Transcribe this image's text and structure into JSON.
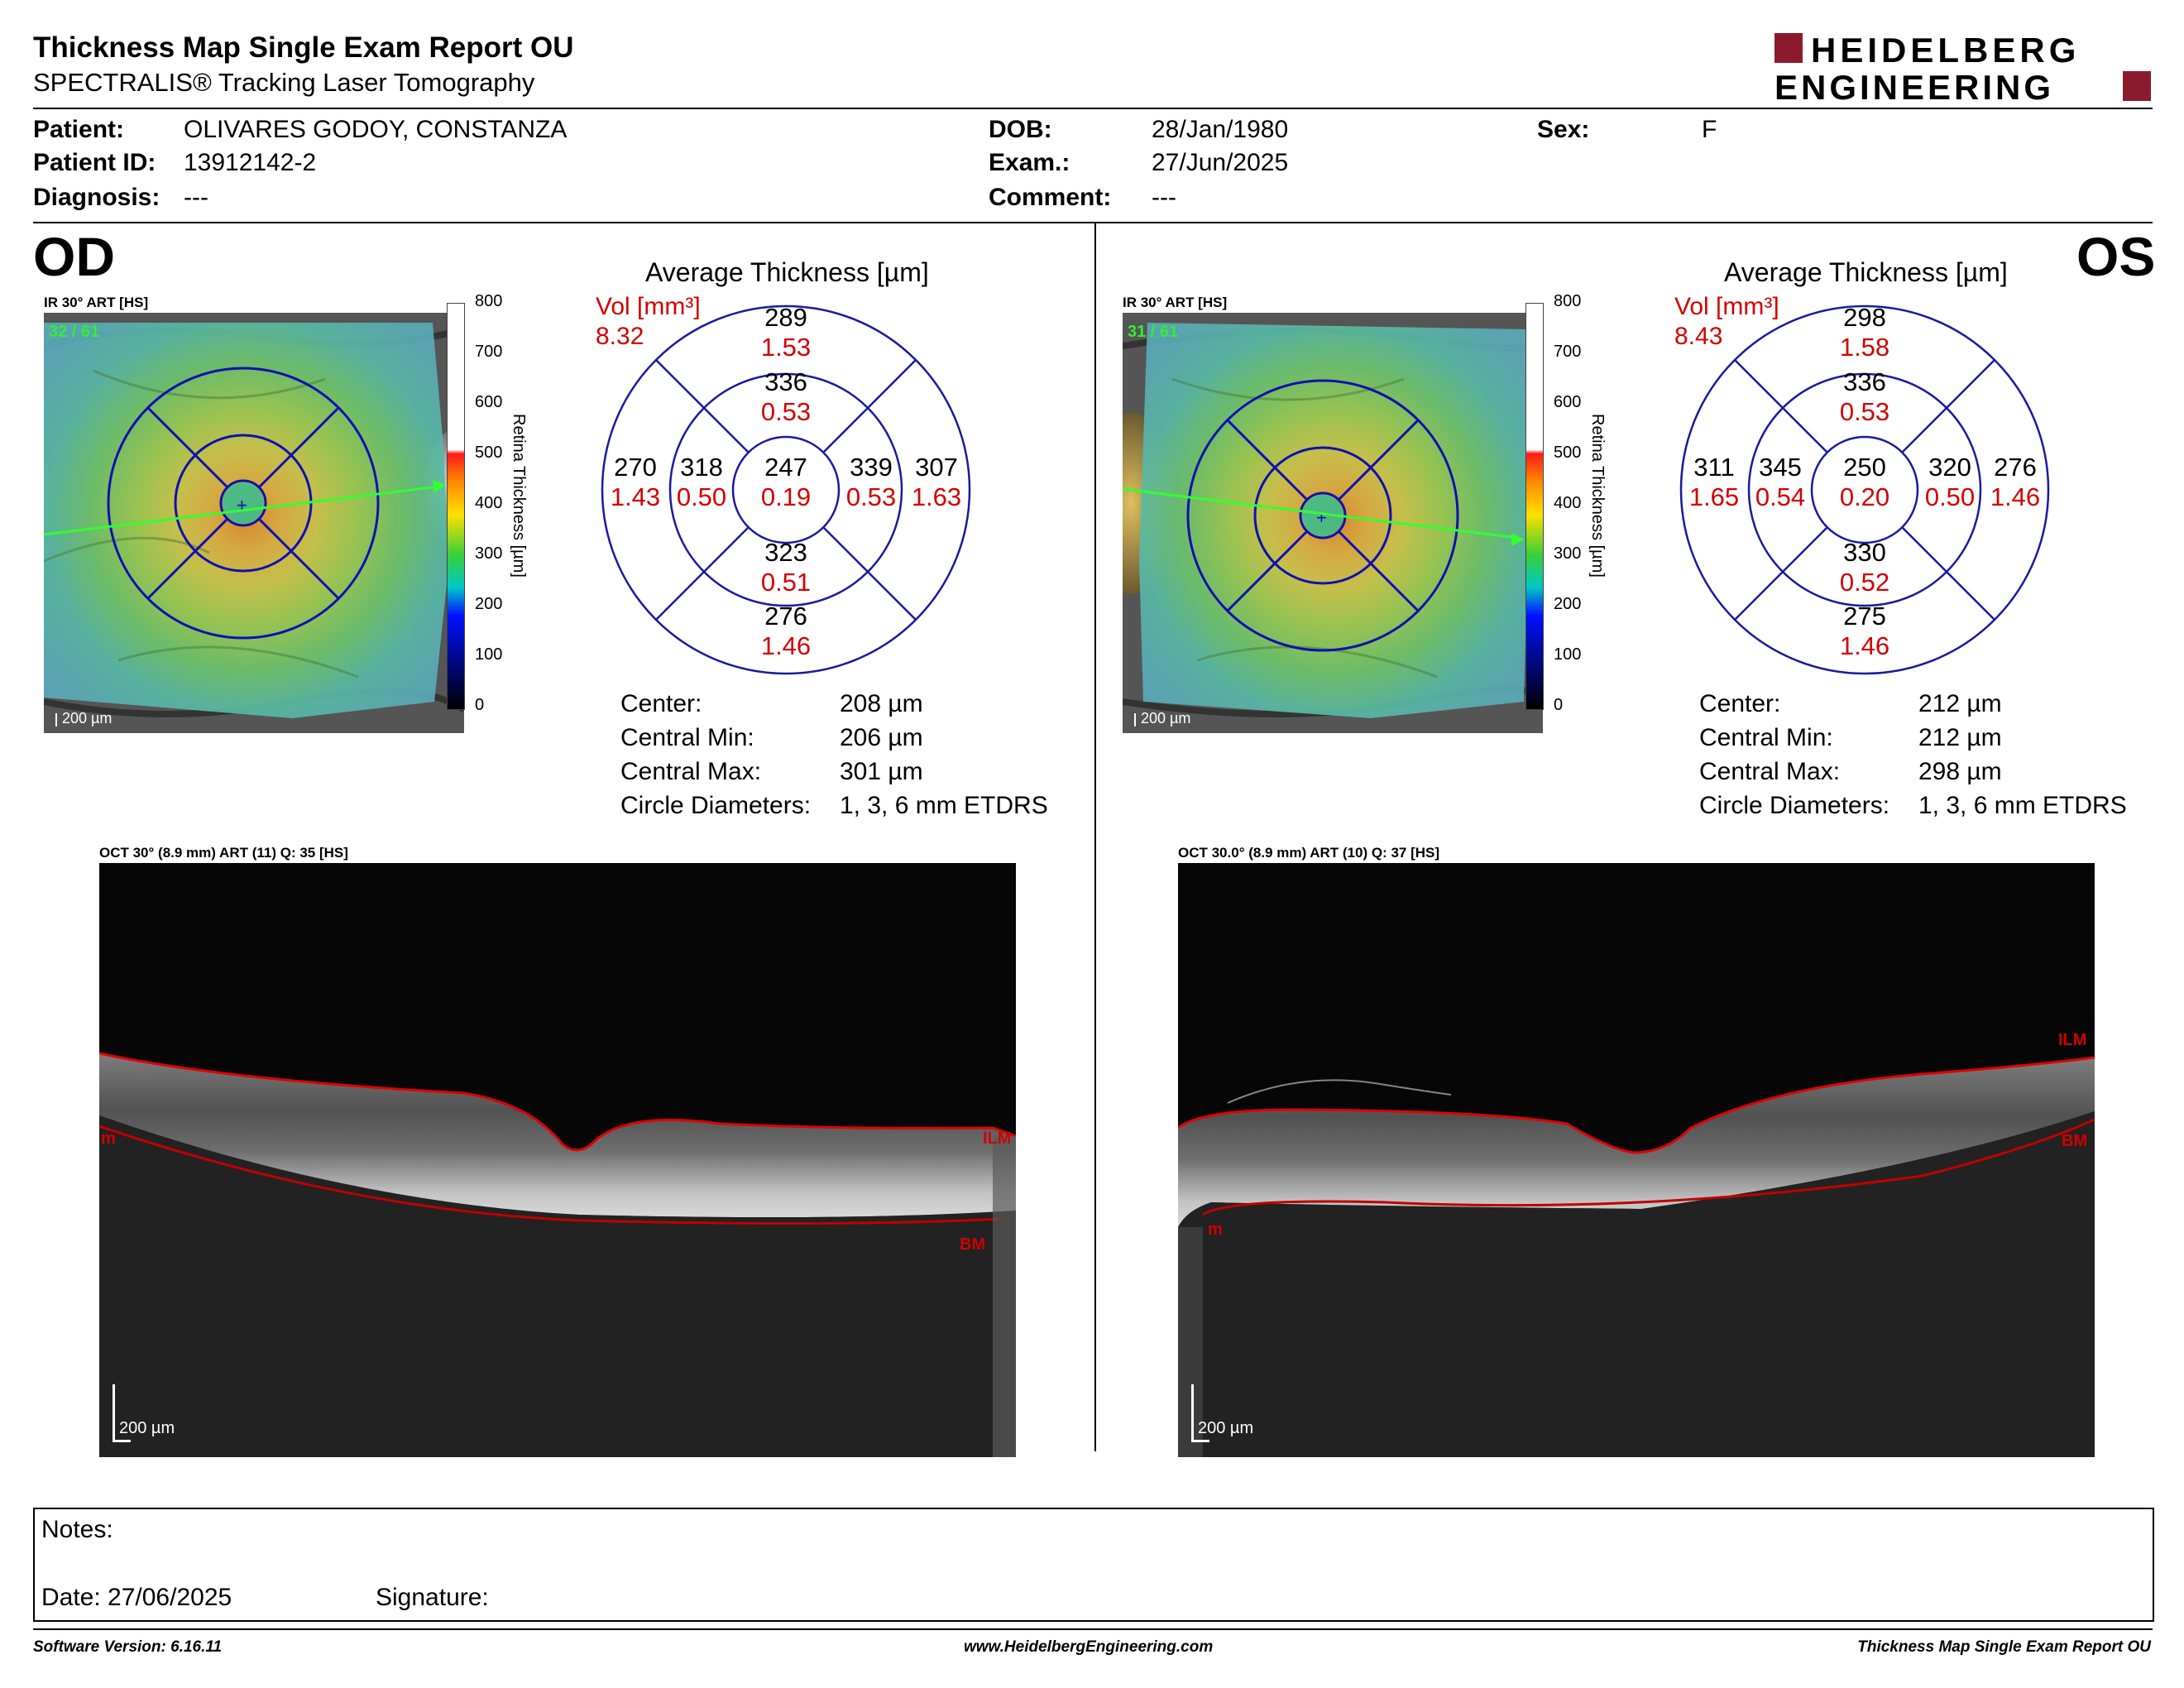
{
  "header": {
    "title": "Thickness Map Single Exam Report OU",
    "subtitle": "SPECTRALIS® Tracking Laser Tomography",
    "logo_line1": "HEIDELBERG",
    "logo_line2": "ENGINEERING",
    "logo_color": "#8b1a2e"
  },
  "patient": {
    "patient_label": "Patient:",
    "patient_value": "OLIVARES GODOY, CONSTANZA",
    "id_label": "Patient ID:",
    "id_value": "13912142-2",
    "diagnosis_label": "Diagnosis:",
    "diagnosis_value": "---",
    "dob_label": "DOB:",
    "dob_value": "28/Jan/1980",
    "exam_label": "Exam.:",
    "exam_value": "27/Jun/2025",
    "comment_label": "Comment:",
    "comment_value": "---",
    "sex_label": "Sex:",
    "sex_value": "F"
  },
  "colorbar": {
    "ticks": [
      "800",
      "700",
      "600",
      "500",
      "400",
      "300",
      "200",
      "100",
      "0"
    ],
    "label": "Retina  Thickness [µm]"
  },
  "od": {
    "eye": "OD",
    "ir_caption": "IR 30° ART [HS]",
    "art_count": "32 / 61",
    "scale": "200 µm",
    "avg_title": "Average Thickness [µm]",
    "vol_label": "Vol [mm³]",
    "vol_total": "8.32",
    "sectors": {
      "outer_sup": [
        "289",
        "1.53"
      ],
      "inner_sup": [
        "336",
        "0.53"
      ],
      "outer_temp": [
        "270",
        "1.43"
      ],
      "inner_temp": [
        "318",
        "0.50"
      ],
      "center": [
        "247",
        "0.19"
      ],
      "inner_nas": [
        "339",
        "0.53"
      ],
      "outer_nas": [
        "307",
        "1.63"
      ],
      "inner_inf": [
        "323",
        "0.51"
      ],
      "outer_inf": [
        "276",
        "1.46"
      ]
    },
    "stats": {
      "center_l": "Center:",
      "center_v": "208 µm",
      "min_l": "Central Min:",
      "min_v": "206 µm",
      "max_l": "Central Max:",
      "max_v": "301 µm",
      "diam_l": "Circle Diameters:",
      "diam_v": "1, 3, 6 mm ETDRS"
    },
    "oct_caption": "OCT 30° (8.9 mm) ART (11) Q: 35 [HS]",
    "oct_scale": "200 µm",
    "ilm": "ILM",
    "bm": "BM",
    "m": "m"
  },
  "os": {
    "eye": "OS",
    "ir_caption": "IR 30° ART [HS]",
    "art_count": "31 / 61",
    "scale": "200 µm",
    "avg_title": "Average Thickness [µm]",
    "vol_label": "Vol [mm³]",
    "vol_total": "8.43",
    "sectors": {
      "outer_sup": [
        "298",
        "1.58"
      ],
      "inner_sup": [
        "336",
        "0.53"
      ],
      "outer_temp": [
        "311",
        "1.65"
      ],
      "inner_temp": [
        "345",
        "0.54"
      ],
      "center": [
        "250",
        "0.20"
      ],
      "inner_nas": [
        "320",
        "0.50"
      ],
      "outer_nas": [
        "276",
        "1.46"
      ],
      "inner_inf": [
        "330",
        "0.52"
      ],
      "outer_inf": [
        "275",
        "1.46"
      ]
    },
    "stats": {
      "center_l": "Center:",
      "center_v": "212 µm",
      "min_l": "Central Min:",
      "min_v": "212 µm",
      "max_l": "Central Max:",
      "max_v": "298 µm",
      "diam_l": "Circle Diameters:",
      "diam_v": "1, 3, 6 mm ETDRS"
    },
    "oct_caption": "OCT 30.0° (8.9 mm) ART (10) Q: 37 [HS]",
    "oct_scale": "200 µm",
    "ilm": "ILM",
    "bm": "BM",
    "m": "m"
  },
  "notes": {
    "notes_label": "Notes:",
    "date_label": "Date: 27/06/2025",
    "signature_label": "Signature:"
  },
  "footer": {
    "software": "Software Version: 6.16.11",
    "website": "www.HeidelbergEngineering.com",
    "report": "Thickness Map Single Exam Report OU"
  }
}
